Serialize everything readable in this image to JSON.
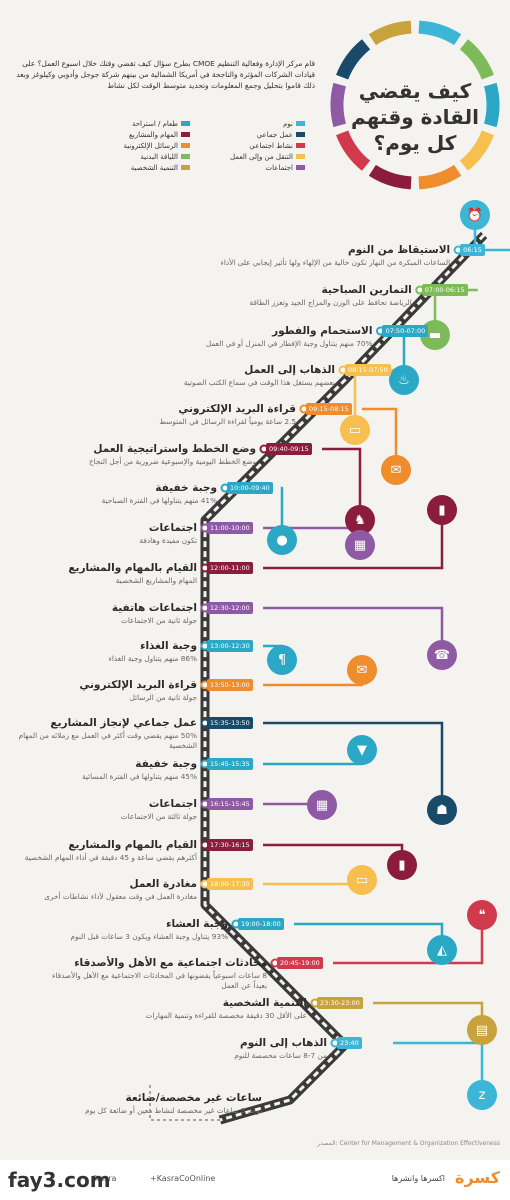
{
  "header": {
    "title": "كيف يقضي القادة وقتهم كل يوم؟",
    "intro": "قام مركز الإدارة وفعالية التنظيم CMOE بطرح سؤال كيف تقضي وقتك خلال اسبوع العمل؟ على قيادات الشركات المؤثرة والناجحة في أمريكا الشمالية من بينهم شركة جوجل وأدوبي وكيلوغز وبعد ذلك قاموا بتحليل وجمع المعلومات وتحديد متوسط الوقت لكل نشاط"
  },
  "legend": {
    "right": [
      {
        "label": "نوم",
        "color": "#3bb6d6"
      },
      {
        "label": "عمل جماعي",
        "color": "#1a4a6a"
      },
      {
        "label": "نشاط اجتماعي",
        "color": "#d13a4c"
      },
      {
        "label": "التنقل من وإلى العمل",
        "color": "#f6bf4f"
      },
      {
        "label": "اجتماعات",
        "color": "#8e5aa3"
      }
    ],
    "left": [
      {
        "label": "طعام / استراحة",
        "color": "#2aa8c5"
      },
      {
        "label": "المهام والمشاريع",
        "color": "#8b1c3e"
      },
      {
        "label": "الرسائل الإلكترونية",
        "color": "#ef8c2c"
      },
      {
        "label": "اللياقة البدنية",
        "color": "#7dbb5a"
      },
      {
        "label": "التنمية الشخصية",
        "color": "#c8a23a"
      }
    ]
  },
  "events": [
    {
      "title": "الاستيقاظ من النوم",
      "desc": "الساعات المبكرة من النهار تكون خالية من الإلهاء ولها تأثير إيجابي على الأداء",
      "time": "06:15",
      "color": "#3bb6d6",
      "icon": "alarm-clock-icon",
      "glyph": "⏰"
    },
    {
      "title": "التمارين الصباحية",
      "desc": "الرياضة تحافظ على الوزن والمزاج الجيد وتعزز الطاقة",
      "time": "07:00-06:15",
      "color": "#7dbb5a",
      "icon": "dumbbell-icon",
      "glyph": "▬"
    },
    {
      "title": "الاستحمام والفطور",
      "desc": "70% منهم يتناول وجبة الإفطار في المنزل أو في العمل",
      "time": "07:50-07:00",
      "color": "#2aa8c5",
      "icon": "bath-icon",
      "glyph": "♨"
    },
    {
      "title": "الذهاب إلى العمل",
      "desc": "بعضهم يستغل هذا الوقت في سماع الكتب الصوتية",
      "time": "08:15-07:50",
      "color": "#f6bf4f",
      "icon": "car-icon",
      "glyph": "▭"
    },
    {
      "title": "قراءة البريد الإلكتروني",
      "desc": "2.5 ساعة يومياً لقراءة الرسائل في المتوسط",
      "time": "09:15-08:15",
      "color": "#ef8c2c",
      "icon": "mail-icon",
      "glyph": "✉"
    },
    {
      "title": "وضع الخطط واستراتيجية العمل",
      "desc": "وضع الخطط اليومية والإسبوعية ضرورية من أجل النجاح",
      "time": "09:40-09:15",
      "color": "#8b1c3e",
      "icon": "chess-knight-icon",
      "glyph": "♞"
    },
    {
      "title": "وجبة خفيفة",
      "desc": "41% منهم يتناولها في الفترة الصباحية",
      "time": "10:00-09:40",
      "color": "#2aa8c5",
      "icon": "apple-icon",
      "glyph": "●"
    },
    {
      "title": "اجتماعات",
      "desc": "تكون مفيدة وهادفة",
      "time": "11:00-10:00",
      "color": "#8e5aa3",
      "icon": "presentation-icon",
      "glyph": "▦"
    },
    {
      "title": "القيام بالمهام والمشاريع",
      "desc": "المهام والمشاريع الشخصية",
      "time": "12:00-11:00",
      "color": "#8b1c3e",
      "icon": "bar-chart-icon",
      "glyph": "▮"
    },
    {
      "title": "اجتماعات هاتفية",
      "desc": "جولة ثانية من الاجتماعات",
      "time": "12:30-12:00",
      "color": "#8e5aa3",
      "icon": "phone-icon",
      "glyph": "☎"
    },
    {
      "title": "وجبة الغذاء",
      "desc": "86% منهم يتناول وجبة الغذاء",
      "time": "13:00-12:30",
      "color": "#2aa8c5",
      "icon": "cutlery-icon",
      "glyph": "¶"
    },
    {
      "title": "قراءة البريد الإلكتروني",
      "desc": "جولة ثانية من الرسائل",
      "time": "13:50-13:00",
      "color": "#ef8c2c",
      "icon": "mail-icon",
      "glyph": "✉"
    },
    {
      "title": "عمل جماعي لإنجاز المشاريع",
      "desc": "50% منهم يقضي وقت أكثر في العمل مع زملائه من المهام الشخصية",
      "time": "15:35-13:50",
      "color": "#1a4a6a",
      "icon": "team-icon",
      "glyph": "☗"
    },
    {
      "title": "وجبة خفيفة",
      "desc": "45% منهم يتناولها في الفترة المسائية",
      "time": "15:45-15:35",
      "color": "#2aa8c5",
      "icon": "ice-cream-icon",
      "glyph": "▼"
    },
    {
      "title": "اجتماعات",
      "desc": "جولة ثالثة من الاجتماعات",
      "time": "16:15-15:45",
      "color": "#8e5aa3",
      "icon": "presentation-icon",
      "glyph": "▦"
    },
    {
      "title": "القيام بالمهام والمشاريع",
      "desc": "أكثرهم يقضي ساعة و 45 دقيقة في أداء المهام الشخصية",
      "time": "17:30-16:15",
      "color": "#8b1c3e",
      "icon": "bar-chart-icon",
      "glyph": "▮"
    },
    {
      "title": "مغادرة العمل",
      "desc": "مغادرة العمل في وقت معقول لأداء نشاطات أخرى",
      "time": "18:00-17:30",
      "color": "#f6bf4f",
      "icon": "car-icon",
      "glyph": "▭"
    },
    {
      "title": "وجبة العشاء",
      "desc": "93% يتناول وجبة العشاء ويكون 3 ساعات قبل النوم",
      "time": "19:00-18:00",
      "color": "#2aa8c5",
      "icon": "pizza-icon",
      "glyph": "◭"
    },
    {
      "title": "محادثات اجتماعية مع الأهل والأصدقاء",
      "desc": "8 ساعات اسبوعياً يقضونها في المحادثات الاجتماعية مع الأهل والأصدقاء بعيداً عن العمل",
      "time": "20:45-19:00",
      "color": "#d13a4c",
      "icon": "chat-icon",
      "glyph": "❝"
    },
    {
      "title": "التنمية الشخصية",
      "desc": "على الأقل 30 دقيقة مخصصة للقراءة وتنمية المهارات",
      "time": "23:30-23:00",
      "color": "#c8a23a",
      "icon": "book-icon",
      "glyph": "▤"
    },
    {
      "title": "الذهاب إلى النوم",
      "desc": "من 7-8 ساعات مخصصة للنوم",
      "time": "23:40",
      "color": "#3bb6d6",
      "icon": "sleep-icon",
      "glyph": "z"
    },
    {
      "title": "ساعات غير مخصصة/ضائعة",
      "desc": "توجد 3 ساعات غير مخصصة لنشاط معين أو ضائعة كل يوم",
      "time": "",
      "color": "#555555",
      "icon": "",
      "glyph": ""
    }
  ],
  "source": "المصدر: Center for Management & Organization Effectiveness",
  "footer": {
    "brand": "كسرة",
    "tagline": "اكسرها وانشرها",
    "gplus": "+KasraCoOnline",
    "handle": "/kasra",
    "watermark": "fay3.com"
  }
}
